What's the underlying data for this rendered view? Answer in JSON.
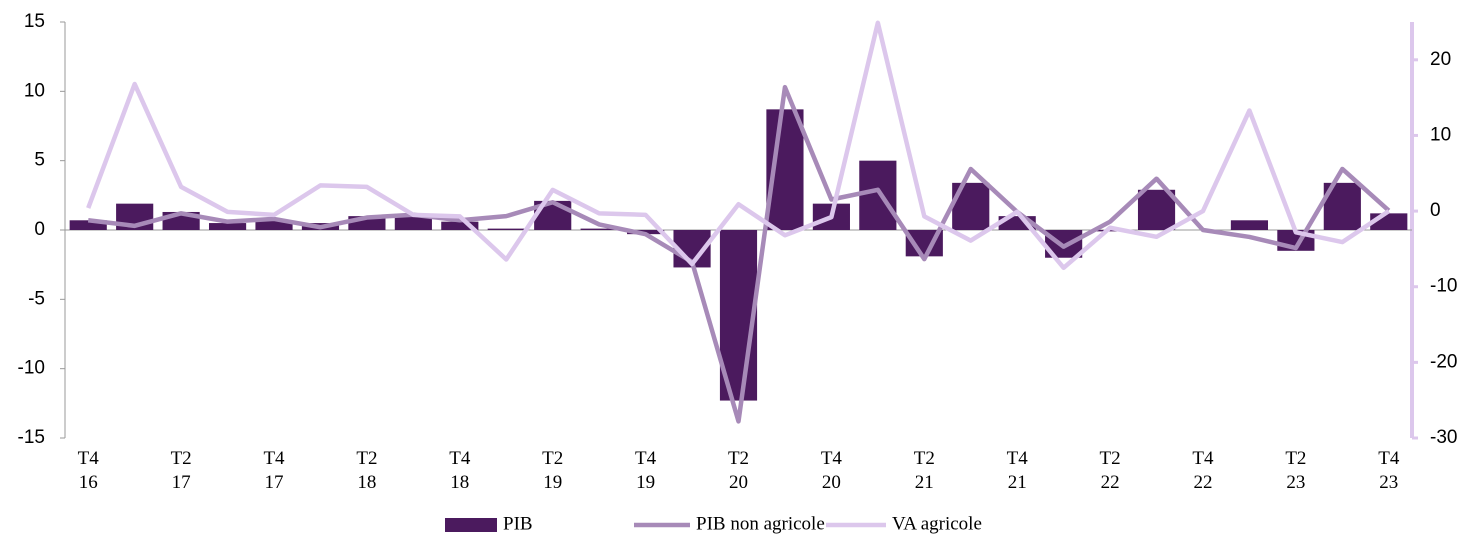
{
  "chart_data": {
    "type": "bar-line",
    "categories": [
      "T4 16",
      null,
      "T2 17",
      null,
      "T4 17",
      null,
      "T2 18",
      null,
      "T4 18",
      null,
      "T2 19",
      null,
      "T4 19",
      null,
      "T2 20",
      null,
      "T4 20",
      null,
      "T2 21",
      null,
      "T4 21",
      null,
      "T2 22",
      null,
      "T4 22",
      null,
      "T2 23",
      null,
      "T4 23"
    ],
    "series": [
      {
        "name": "PIB",
        "type": "bar",
        "color": "#4b1a5e",
        "values": [
          0.7,
          1.9,
          1.3,
          0.5,
          0.7,
          0.5,
          1.0,
          1.1,
          0.6,
          0.1,
          2.1,
          0.1,
          -0.3,
          -2.7,
          -12.3,
          8.7,
          1.9,
          5.0,
          -1.9,
          3.4,
          1.0,
          -2.0,
          -0.1,
          2.9,
          0.0,
          0.7,
          -1.5,
          3.4,
          1.2
        ]
      },
      {
        "name": "PIB non agricole",
        "type": "line",
        "color": "#a78ab8",
        "values": [
          0.7,
          0.3,
          1.2,
          0.6,
          0.8,
          0.2,
          0.9,
          1.1,
          0.7,
          1.0,
          2.0,
          0.4,
          -0.3,
          -2.3,
          -13.8,
          10.3,
          2.2,
          2.9,
          -2.1,
          4.4,
          1.3,
          -1.2,
          0.6,
          3.7,
          0.0,
          -0.5,
          -1.3,
          4.4,
          1.4
        ]
      },
      {
        "name": "VA agricole",
        "type": "line",
        "color": "#dcc7ec",
        "axis": "y2",
        "values": [
          0.4,
          16.8,
          3.2,
          -0.1,
          -0.5,
          3.4,
          3.2,
          -0.5,
          -0.7,
          -6.4,
          2.8,
          -0.3,
          -0.5,
          -7.0,
          0.9,
          -3.2,
          -0.8,
          24.9,
          -0.7,
          -3.9,
          -0.1,
          -7.5,
          -2.2,
          -3.4,
          0.0,
          13.3,
          -2.8,
          -4.1,
          0.0
        ]
      }
    ],
    "ylim": [
      -15,
      15
    ],
    "yticks": [
      -15,
      -10,
      -5,
      0,
      5,
      10,
      15
    ],
    "y2lim": [
      -30,
      25
    ],
    "y2ticks": [
      -30,
      -20,
      -10,
      0,
      10,
      20
    ],
    "grid": false,
    "legend": "bottom"
  }
}
